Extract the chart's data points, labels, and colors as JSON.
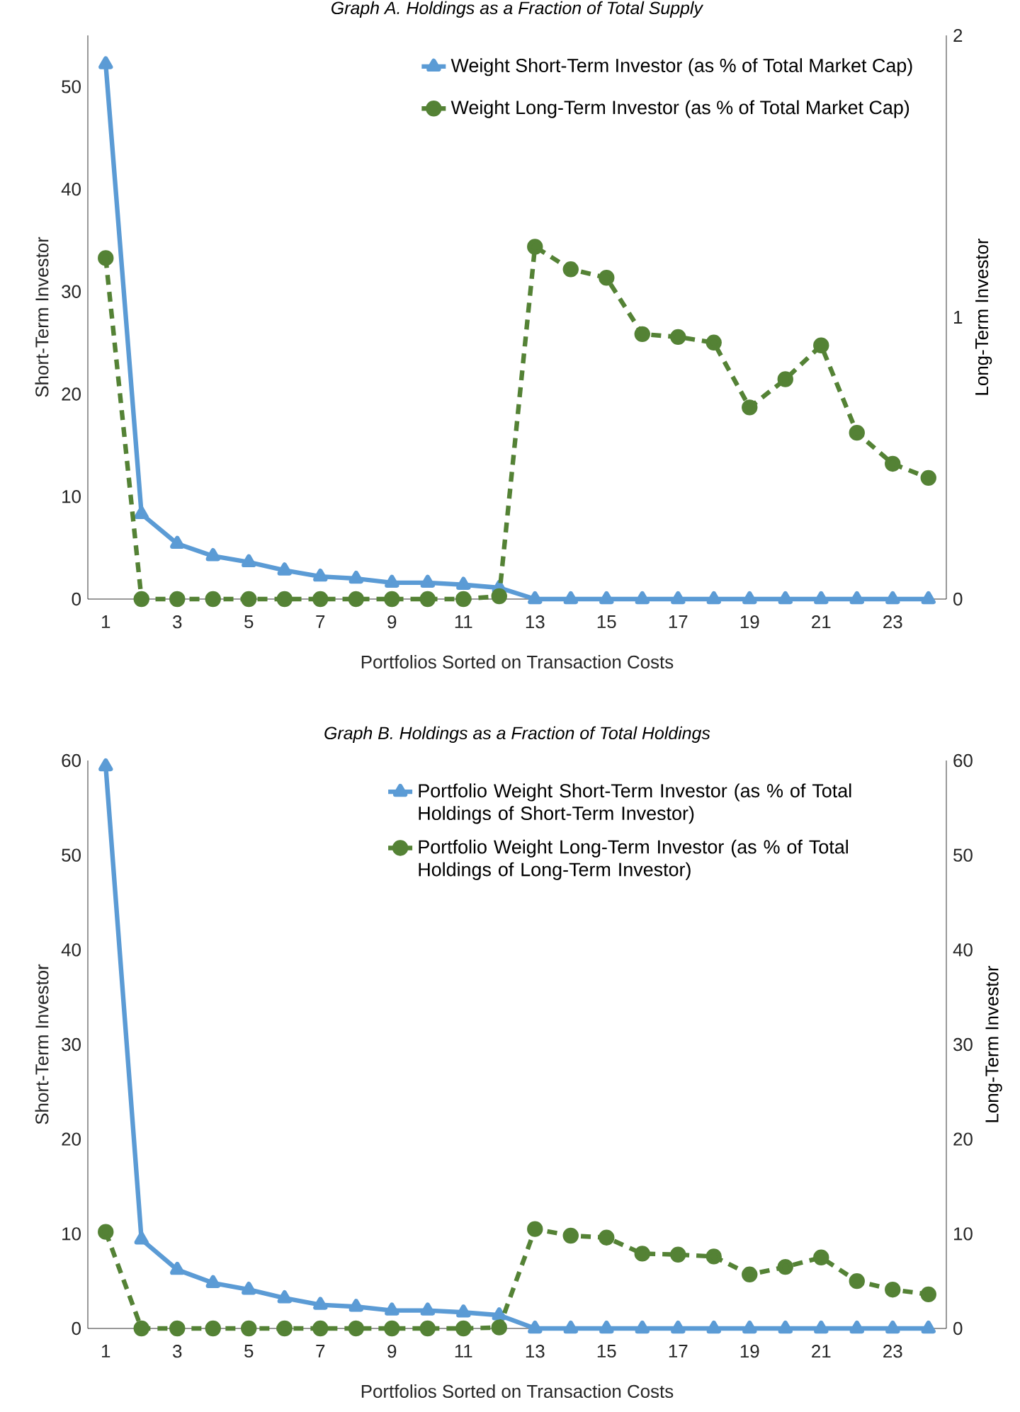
{
  "chart_data": [
    {
      "type": "line",
      "title": "*Graph A. Holdings as a Fraction of Total Supply*",
      "xlabel": "Portfolios Sorted on Transaction Costs",
      "ylabel": "Short-Term Investor",
      "y2label": "Long-Term Investor",
      "xlim": [
        0.5,
        24.5
      ],
      "xticks": [
        1,
        3,
        5,
        7,
        9,
        11,
        13,
        15,
        17,
        19,
        21,
        23
      ],
      "ylim": [
        0,
        55
      ],
      "yticks": [
        0,
        10,
        20,
        30,
        40,
        50
      ],
      "y2lim": [
        0,
        2
      ],
      "y2ticks": [
        0,
        1,
        2
      ],
      "legend": "top right",
      "grid": false,
      "x": [
        1,
        2,
        3,
        4,
        5,
        6,
        7,
        8,
        9,
        10,
        11,
        12,
        13,
        14,
        15,
        16,
        17,
        18,
        19,
        20,
        21,
        22,
        23,
        24
      ],
      "series": [
        {
          "name": "Weight Short-Term Investor (as % of Total Market Cap)",
          "color": "#5b9bd5",
          "marker": "triangle",
          "line_style": "solid",
          "axis": "y",
          "values": [
            52.2,
            8.3,
            5.4,
            4.2,
            3.6,
            2.8,
            2.2,
            2.0,
            1.6,
            1.6,
            1.4,
            1.1,
            0,
            0,
            0,
            0,
            0,
            0,
            0,
            0,
            0,
            0,
            0,
            0
          ]
        },
        {
          "name": "Weight Long-Term Investor (as % of Total Market Cap)",
          "color": "#548235",
          "marker": "circle",
          "line_style": "dashed",
          "axis": "y2",
          "values": [
            1.21,
            0,
            0,
            0,
            0,
            0,
            0,
            0,
            0,
            0,
            0,
            0.01,
            1.25,
            1.17,
            1.14,
            0.94,
            0.93,
            0.91,
            0.68,
            0.78,
            0.9,
            0.59,
            0.48,
            0.43
          ]
        }
      ]
    },
    {
      "type": "line",
      "title": "*Graph B. Holdings as a Fraction of Total Holdings*",
      "xlabel": "Portfolios Sorted on Transaction Costs",
      "ylabel": "Short-Term Investor",
      "y2label": "Long-Term Investor",
      "xlim": [
        0.5,
        24.5
      ],
      "xticks": [
        1,
        3,
        5,
        7,
        9,
        11,
        13,
        15,
        17,
        19,
        21,
        23
      ],
      "ylim": [
        0,
        60
      ],
      "yticks": [
        0,
        10,
        20,
        30,
        40,
        50,
        60
      ],
      "y2lim": [
        0,
        60
      ],
      "y2ticks": [
        0,
        10,
        20,
        30,
        40,
        50,
        60
      ],
      "legend": "top right",
      "grid": false,
      "x": [
        1,
        2,
        3,
        4,
        5,
        6,
        7,
        8,
        9,
        10,
        11,
        12,
        13,
        14,
        15,
        16,
        17,
        18,
        19,
        20,
        21,
        22,
        23,
        24
      ],
      "series": [
        {
          "name": "Portfolio Weight Short-Term Investor (as % of Total Holdings of Short-Term Investor)",
          "color": "#5b9bd5",
          "marker": "triangle",
          "line_style": "solid",
          "axis": "y",
          "values": [
            59.4,
            9.4,
            6.2,
            4.8,
            4.1,
            3.2,
            2.5,
            2.3,
            1.9,
            1.9,
            1.7,
            1.4,
            0,
            0,
            0,
            0,
            0,
            0,
            0,
            0,
            0,
            0,
            0,
            0
          ]
        },
        {
          "name": "Portfolio Weight Long-Term Investor (as % of Total Holdings of Long-Term Investor)",
          "color": "#548235",
          "marker": "circle",
          "line_style": "dashed",
          "axis": "y2",
          "values": [
            10.2,
            0,
            0,
            0,
            0,
            0,
            0,
            0,
            0,
            0,
            0,
            0.1,
            10.5,
            9.8,
            9.6,
            7.9,
            7.8,
            7.6,
            5.7,
            6.5,
            7.5,
            5.0,
            4.1,
            3.6
          ]
        }
      ]
    }
  ]
}
